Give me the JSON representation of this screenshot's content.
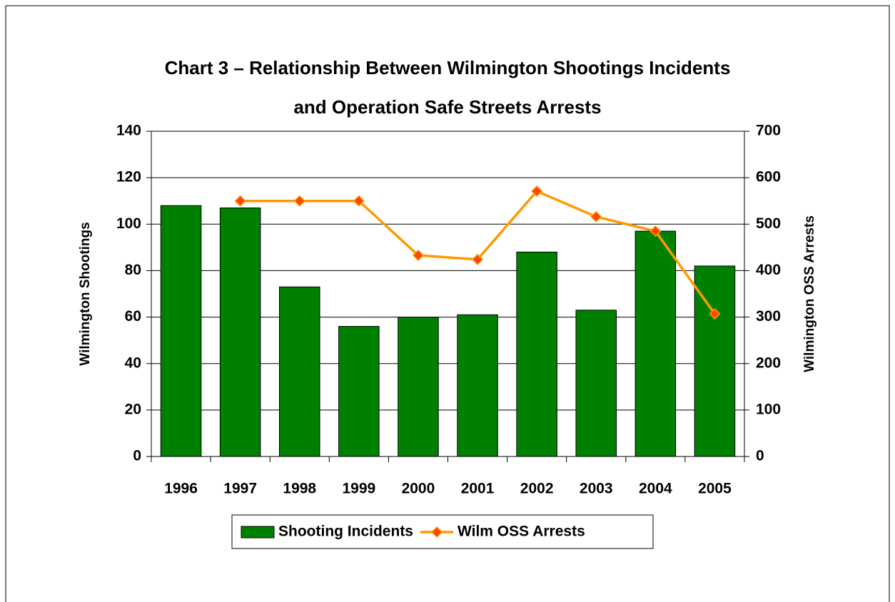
{
  "chart_data": {
    "type": "bar_line",
    "title": [
      "Chart 3 – Relationship Between Wilmington Shootings Incidents",
      "and Operation Safe Streets Arrests"
    ],
    "ylabel": "Wilmington Shootings",
    "y2label": "Wilmington OSS Arrests",
    "categories": [
      "1996",
      "1997",
      "1998",
      "1999",
      "2000",
      "2001",
      "2002",
      "2003",
      "2004",
      "2005"
    ],
    "series": [
      {
        "name": "Shooting Incidents",
        "type": "bar",
        "color": "#008000",
        "values": [
          108,
          107,
          73,
          56,
          60,
          61,
          88,
          63,
          97,
          82
        ]
      },
      {
        "name": "Wilm OSS Arrests",
        "type": "line",
        "axis": "y2",
        "color": "#ff9900",
        "marker_color": "#ff4500",
        "values": [
          null,
          550,
          550,
          550,
          433,
          424,
          571,
          516,
          485,
          307
        ]
      }
    ],
    "ylim": [
      0,
      140
    ],
    "yticks": [
      0,
      20,
      40,
      60,
      80,
      100,
      120,
      140
    ],
    "y2lim": [
      0,
      700
    ],
    "y2ticks": [
      0,
      100,
      200,
      300,
      400,
      500,
      600,
      700
    ],
    "grid": true,
    "legend": "bottom"
  }
}
